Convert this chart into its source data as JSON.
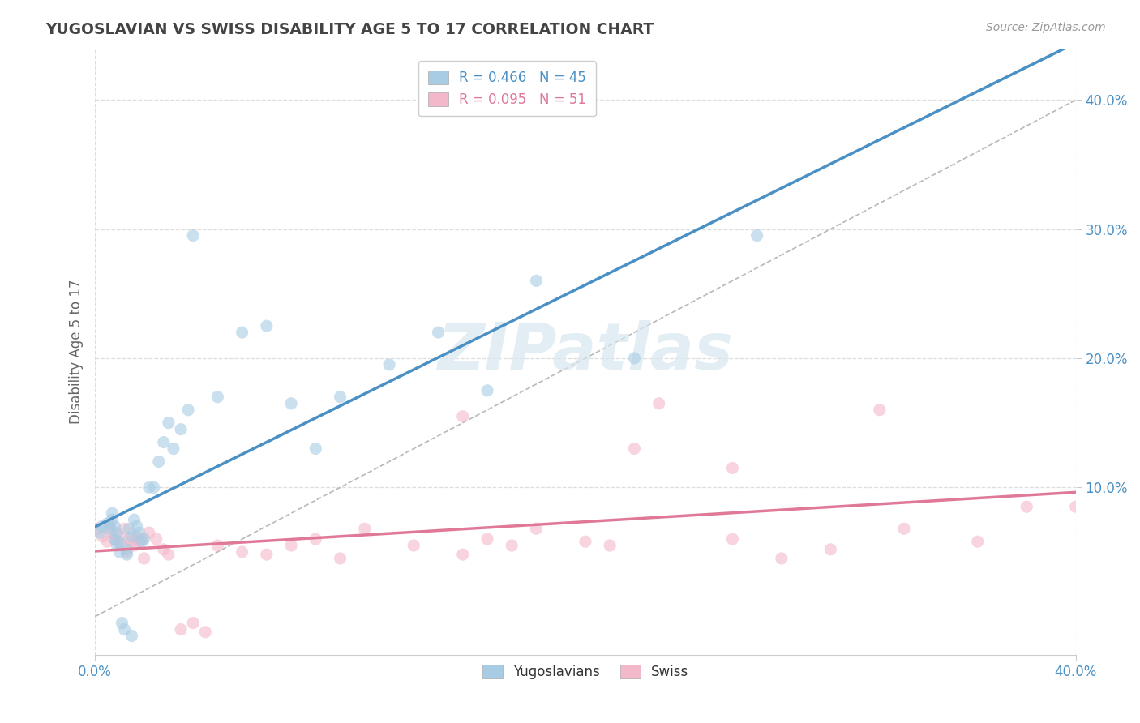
{
  "title": "YUGOSLAVIAN VS SWISS DISABILITY AGE 5 TO 17 CORRELATION CHART",
  "source_text": "Source: ZipAtlas.com",
  "ylabel": "Disability Age 5 to 17",
  "xlim": [
    0.0,
    0.4
  ],
  "ylim": [
    -0.03,
    0.44
  ],
  "yticks": [
    0.1,
    0.2,
    0.3,
    0.4
  ],
  "yticklabels": [
    "10.0%",
    "20.0%",
    "30.0%",
    "40.0%"
  ],
  "xtick_left": 0.0,
  "xtick_right": 0.4,
  "xtick_left_label": "0.0%",
  "xtick_right_label": "40.0%",
  "legend_r1": "R = 0.466",
  "legend_n1": "N = 45",
  "legend_r2": "R = 0.095",
  "legend_n2": "N = 51",
  "color_blue": "#a8cce4",
  "color_pink": "#f4b8cb",
  "color_blue_line": "#4a90c4",
  "color_pink_line": "#e07898",
  "color_ref_line": "#b8b8b8",
  "yugoslavian_x": [
    0.002,
    0.003,
    0.005,
    0.006,
    0.007,
    0.007,
    0.008,
    0.008,
    0.009,
    0.009,
    0.01,
    0.01,
    0.011,
    0.012,
    0.013,
    0.013,
    0.014,
    0.015,
    0.015,
    0.016,
    0.017,
    0.018,
    0.019,
    0.02,
    0.022,
    0.024,
    0.026,
    0.028,
    0.03,
    0.032,
    0.035,
    0.038,
    0.04,
    0.05,
    0.06,
    0.07,
    0.08,
    0.09,
    0.1,
    0.12,
    0.14,
    0.16,
    0.18,
    0.22,
    0.27
  ],
  "yugoslavian_y": [
    0.065,
    0.07,
    0.072,
    0.068,
    0.075,
    0.08,
    0.06,
    0.07,
    0.055,
    0.065,
    0.05,
    0.058,
    -0.005,
    -0.01,
    0.048,
    0.052,
    0.068,
    0.062,
    -0.015,
    0.075,
    0.07,
    0.065,
    0.058,
    0.06,
    0.1,
    0.1,
    0.12,
    0.135,
    0.15,
    0.13,
    0.145,
    0.16,
    0.295,
    0.17,
    0.22,
    0.225,
    0.165,
    0.13,
    0.17,
    0.195,
    0.22,
    0.175,
    0.26,
    0.2,
    0.295
  ],
  "swiss_x": [
    0.001,
    0.003,
    0.005,
    0.006,
    0.007,
    0.008,
    0.009,
    0.01,
    0.011,
    0.012,
    0.013,
    0.014,
    0.015,
    0.016,
    0.017,
    0.018,
    0.019,
    0.02,
    0.022,
    0.025,
    0.028,
    0.03,
    0.035,
    0.04,
    0.045,
    0.05,
    0.06,
    0.07,
    0.08,
    0.09,
    0.1,
    0.11,
    0.13,
    0.15,
    0.16,
    0.17,
    0.18,
    0.2,
    0.21,
    0.23,
    0.26,
    0.28,
    0.3,
    0.33,
    0.36,
    0.38,
    0.4,
    0.15,
    0.22,
    0.26,
    0.32
  ],
  "swiss_y": [
    0.068,
    0.062,
    0.058,
    0.07,
    0.065,
    0.06,
    0.058,
    0.062,
    0.055,
    0.068,
    0.05,
    0.06,
    0.058,
    0.055,
    0.062,
    0.058,
    0.06,
    0.045,
    0.065,
    0.06,
    0.052,
    0.048,
    -0.01,
    -0.005,
    -0.012,
    0.055,
    0.05,
    0.048,
    0.055,
    0.06,
    0.045,
    0.068,
    0.055,
    0.048,
    0.06,
    0.055,
    0.068,
    0.058,
    0.055,
    0.165,
    0.06,
    0.045,
    0.052,
    0.068,
    0.058,
    0.085,
    0.085,
    0.155,
    0.13,
    0.115,
    0.16
  ],
  "background_color": "#ffffff",
  "grid_color": "#dddddd",
  "title_color": "#444444",
  "axis_color": "#4a90c4",
  "scatter_alpha": 0.6,
  "scatter_size": 120
}
